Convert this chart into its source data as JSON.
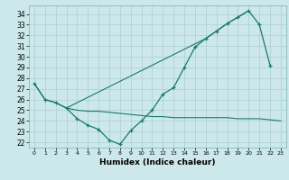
{
  "color": "#1a7a6e",
  "bg_color": "#cce8ea",
  "grid_color": "#aacfd4",
  "xlabel": "Humidex (Indice chaleur)",
  "ylim": [
    21.5,
    34.8
  ],
  "xlim": [
    -0.5,
    23.5
  ],
  "yticks": [
    22,
    23,
    24,
    25,
    26,
    27,
    28,
    29,
    30,
    31,
    32,
    33,
    34
  ],
  "xticks": [
    0,
    1,
    2,
    3,
    4,
    5,
    6,
    7,
    8,
    9,
    10,
    11,
    12,
    13,
    14,
    15,
    16,
    17,
    18,
    19,
    20,
    21,
    22,
    23
  ],
  "main_x": [
    0,
    1,
    2,
    3,
    4,
    5,
    6,
    7,
    8,
    9,
    10,
    11,
    12,
    13,
    14,
    15,
    16,
    17,
    18,
    19,
    20,
    21,
    22
  ],
  "main_y": [
    27.5,
    26.0,
    25.7,
    25.2,
    24.2,
    23.6,
    23.2,
    22.2,
    21.8,
    23.1,
    24.0,
    25.0,
    26.5,
    27.1,
    29.0,
    30.9,
    31.7,
    32.4,
    33.1,
    33.7,
    34.3,
    33.0,
    29.2
  ],
  "upper_x": [
    0,
    1,
    2,
    3,
    16,
    17,
    18,
    19,
    20
  ],
  "upper_y": [
    27.5,
    26.0,
    25.7,
    25.2,
    31.7,
    32.4,
    33.1,
    33.7,
    34.3
  ],
  "flat_x": [
    3,
    4,
    5,
    6,
    7,
    8,
    9,
    10,
    11,
    12,
    13,
    14,
    15,
    16,
    17,
    18,
    19,
    20,
    21,
    22,
    23
  ],
  "flat_y": [
    25.2,
    25.0,
    24.9,
    24.9,
    24.8,
    24.7,
    24.6,
    24.5,
    24.4,
    24.4,
    24.3,
    24.3,
    24.3,
    24.3,
    24.3,
    24.3,
    24.2,
    24.2,
    24.2,
    24.1,
    24.0
  ]
}
